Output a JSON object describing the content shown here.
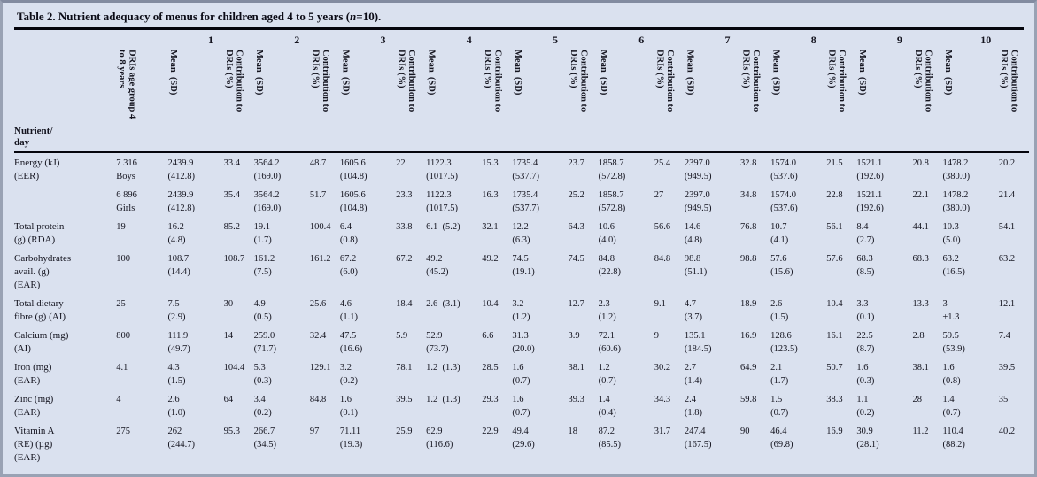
{
  "title": {
    "prefix": "Table 2. Nutrient adequacy of menus for children aged 4 to 5 years (",
    "n": "n",
    "suffix": "=10)."
  },
  "colors": {
    "background": "#dae1ef",
    "text": "#14141f",
    "rule": "#05050d"
  },
  "table": {
    "menu_numbers": [
      "1",
      "2",
      "3",
      "4",
      "5",
      "6",
      "7",
      "8",
      "9",
      "10"
    ],
    "row_header": "Nutrient/\nday",
    "col_headers": {
      "dris": "DRIs age group 4\nto 8 years",
      "mean": "Mean  (SD)",
      "contribution": "Contribution to\nDRIs (%)"
    },
    "rows": [
      {
        "nutrient": "Energy (kJ)\n(EER)",
        "dris": "7 316\nBoys",
        "means": [
          "2439.9\n(412.8)",
          "3564.2\n(169.0)",
          "1605.6\n(104.8)",
          "1122.3\n(1017.5)",
          "1735.4\n(537.7)",
          "1858.7\n(572.8)",
          "2397.0\n(949.5)",
          "1574.0\n(537.6)",
          "1521.1\n(192.6)",
          "1478.2\n(380.0)"
        ],
        "contribs": [
          "33.4",
          "48.7",
          "22",
          "15.3",
          "23.7",
          "25.4",
          "32.8",
          "21.5",
          "20.8",
          "20.2"
        ]
      },
      {
        "nutrient": "",
        "dris": "6 896\nGirls",
        "means": [
          "2439.9\n(412.8)",
          "3564.2\n(169.0)",
          "1605.6\n(104.8)",
          "1122.3\n(1017.5)",
          "1735.4\n(537.7)",
          "1858.7\n(572.8)",
          "2397.0\n(949.5)",
          "1574.0\n(537.6)",
          "1521.1\n(192.6)",
          "1478.2\n(380.0)"
        ],
        "contribs": [
          "35.4",
          "51.7",
          "23.3",
          "16.3",
          "25.2",
          "27",
          "34.8",
          "22.8",
          "22.1",
          "21.4"
        ]
      },
      {
        "nutrient": "Total protein\n(g) (RDA)",
        "dris": "19",
        "means": [
          "16.2\n(4.8)",
          "19.1\n(1.7)",
          "6.4\n(0.8)",
          "6.1  (5.2)",
          "12.2\n(6.3)",
          "10.6\n(4.0)",
          "14.6\n(4.8)",
          "10.7\n(4.1)",
          "8.4\n(2.7)",
          "10.3\n(5.0)"
        ],
        "contribs": [
          "85.2",
          "100.4",
          "33.8",
          "32.1",
          "64.3",
          "56.6",
          "76.8",
          "56.1",
          "44.1",
          "54.1"
        ]
      },
      {
        "nutrient": "Carbohydrates\navail. (g)\n(EAR)",
        "dris": "100",
        "means": [
          "108.7\n(14.4)",
          "161.2\n(7.5)",
          "67.2\n(6.0)",
          "49.2\n(45.2)",
          "74.5\n(19.1)",
          "84.8\n(22.8)",
          "98.8\n(51.1)",
          "57.6\n(15.6)",
          "68.3\n(8.5)",
          "63.2\n(16.5)"
        ],
        "contribs": [
          "108.7",
          "161.2",
          "67.2",
          "49.2",
          "74.5",
          "84.8",
          "98.8",
          "57.6",
          "68.3",
          "63.2"
        ]
      },
      {
        "nutrient": "Total dietary\nfibre (g) (AI)",
        "dris": "25",
        "means": [
          "7.5\n(2.9)",
          "4.9\n(0.5)",
          "4.6\n(1.1)",
          "2.6  (3.1)",
          "3.2\n(1.2)",
          "2.3\n(1.2)",
          "4.7\n(3.7)",
          "2.6\n(1.5)",
          "3.3\n(0.1)",
          "3\n±1.3"
        ],
        "contribs": [
          "30",
          "25.6",
          "18.4",
          "10.4",
          "12.7",
          "9.1",
          "18.9",
          "10.4",
          "13.3",
          "12.1"
        ]
      },
      {
        "nutrient": "Calcium (mg)\n(AI)",
        "dris": "800",
        "means": [
          "111.9\n(49.7)",
          "259.0\n(71.7)",
          "47.5\n(16.6)",
          "52.9\n(73.7)",
          "31.3\n(20.0)",
          "72.1\n(60.6)",
          "135.1\n(184.5)",
          "128.6\n(123.5)",
          "22.5\n(8.7)",
          "59.5\n(53.9)"
        ],
        "contribs": [
          "14",
          "32.4",
          "5.9",
          "6.6",
          "3.9",
          "9",
          "16.9",
          "16.1",
          "2.8",
          "7.4"
        ]
      },
      {
        "nutrient": "Iron (mg)\n(EAR)",
        "dris": "4.1",
        "means": [
          "4.3\n(1.5)",
          "5.3\n(0.3)",
          "3.2\n(0.2)",
          "1.2  (1.3)",
          "1.6\n(0.7)",
          "1.2\n(0.7)",
          "2.7\n(1.4)",
          "2.1\n(1.7)",
          "1.6\n(0.3)",
          "1.6\n(0.8)"
        ],
        "contribs": [
          "104.4",
          "129.1",
          "78.1",
          "28.5",
          "38.1",
          "30.2",
          "64.9",
          "50.7",
          "38.1",
          "39.5"
        ]
      },
      {
        "nutrient": "Zinc (mg)\n(EAR)",
        "dris": "4",
        "means": [
          "2.6\n(1.0)",
          "3.4\n(0.2)",
          "1.6\n(0.1)",
          "1.2  (1.3)",
          "1.6\n(0.7)",
          "1.4\n(0.4)",
          "2.4\n(1.8)",
          "1.5\n(0.7)",
          "1.1\n(0.2)",
          "1.4\n(0.7)"
        ],
        "contribs": [
          "64",
          "84.8",
          "39.5",
          "29.3",
          "39.3",
          "34.3",
          "59.8",
          "38.3",
          "28",
          "35"
        ]
      },
      {
        "nutrient": "Vitamin A\n(RE) (µg)\n(EAR)",
        "dris": "275",
        "means": [
          "262\n(244.7)",
          "266.7\n(34.5)",
          "71.11\n(19.3)",
          "62.9\n(116.6)",
          "49.4\n(29.6)",
          "87.2\n(85.5)",
          "247.4\n(167.5)",
          "46.4\n(69.8)",
          "30.9\n(28.1)",
          "110.4\n(88.2)"
        ],
        "contribs": [
          "95.3",
          "97",
          "25.9",
          "22.9",
          "18",
          "31.7",
          "90",
          "16.9",
          "11.2",
          "40.2"
        ]
      }
    ]
  }
}
